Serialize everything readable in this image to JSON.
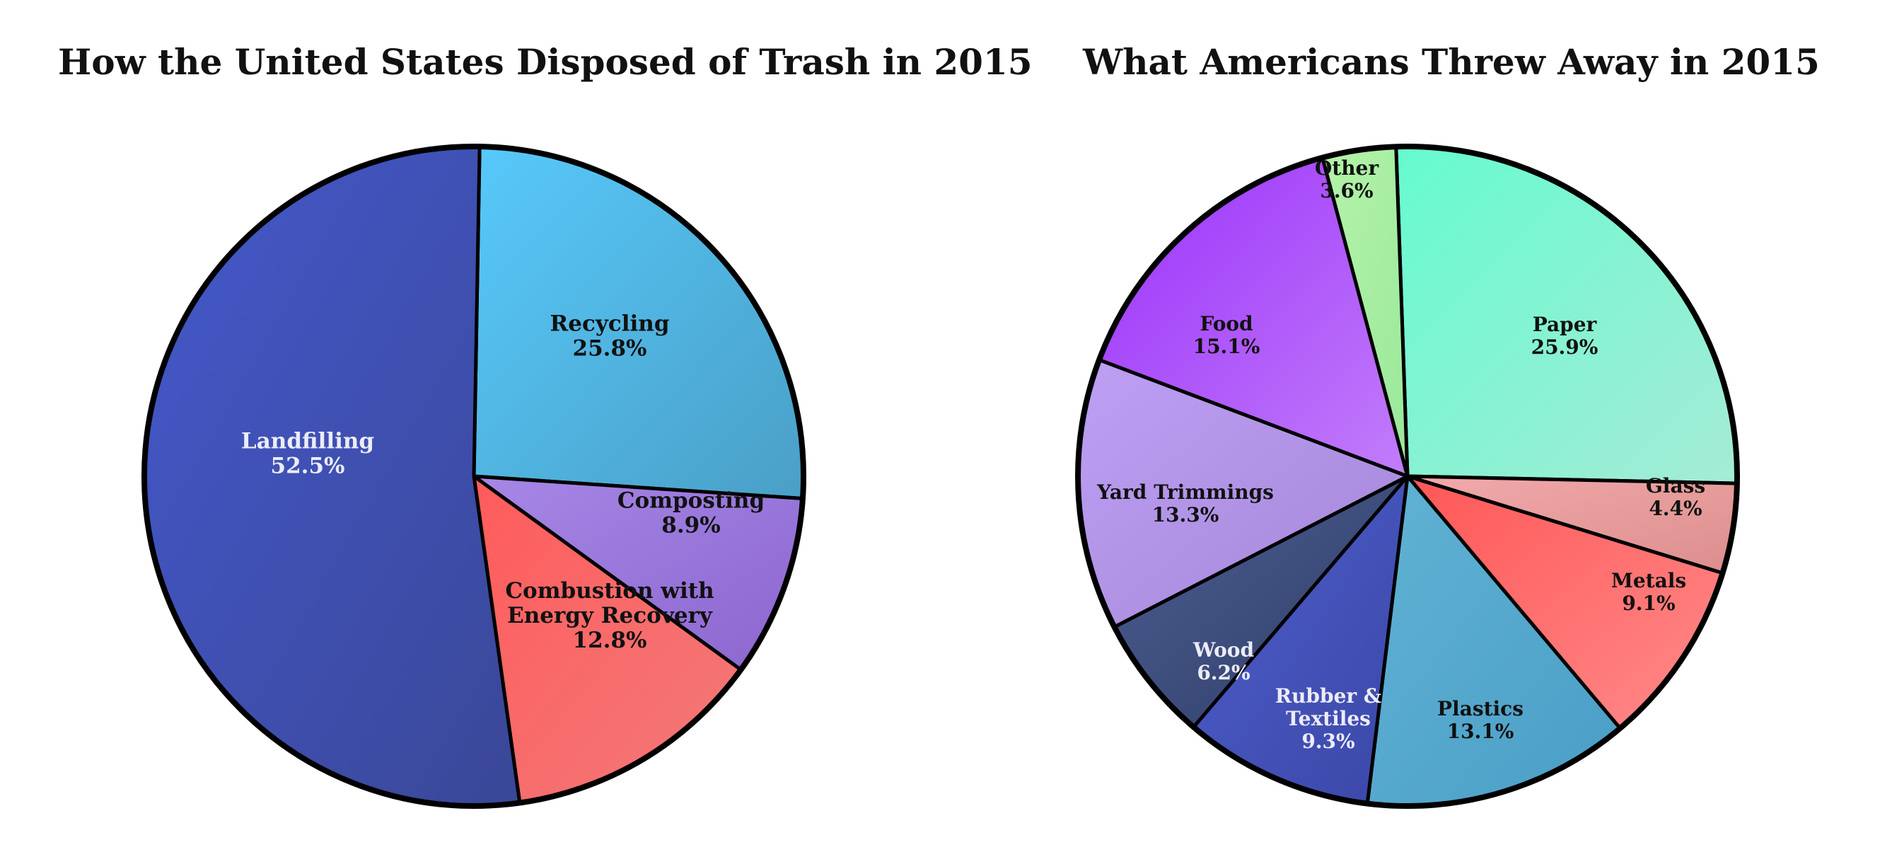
{
  "chart_data": [
    {
      "type": "pie",
      "title": "How the United States Disposed of Trash in 2015",
      "start_angle_deg": 1.0,
      "direction": "clockwise",
      "slices": [
        {
          "label": [
            "Recycling"
          ],
          "value": 25.8,
          "display": "25.8%",
          "color_light": "#57c9fb",
          "color_dark": "#4a9fc6",
          "text_color": "#111111"
        },
        {
          "label": [
            "Composting"
          ],
          "value": 8.9,
          "display": "8.9%",
          "color_light": "#a687e6",
          "color_dark": "#8c66cf",
          "text_color": "#111111"
        },
        {
          "label": [
            "Combustion with",
            "Energy Recovery"
          ],
          "value": 12.8,
          "display": "12.8%",
          "color_light": "#ff5b5b",
          "color_dark": "#f27a7a",
          "text_color": "#111111"
        },
        {
          "label": [
            "Landfilling"
          ],
          "value": 52.5,
          "display": "52.5%",
          "color_light": "#4459cc",
          "color_dark": "#3a4797",
          "text_color": "#ececf8"
        }
      ]
    },
    {
      "type": "pie",
      "title": "What Americans Threw Away in 2015",
      "start_angle_deg": -2.0,
      "direction": "clockwise",
      "slices": [
        {
          "label": [
            "Paper"
          ],
          "value": 25.9,
          "display": "25.9%",
          "color_light": "#66fbcf",
          "color_dark": "#a5ebd6",
          "text_color": "#111111"
        },
        {
          "label": [
            "Glass"
          ],
          "value": 4.4,
          "display": "4.4%",
          "color_light": "#f2aaaa",
          "color_dark": "#dc8e8e",
          "text_color": "#111111"
        },
        {
          "label": [
            "Metals"
          ],
          "value": 9.1,
          "display": "9.1%",
          "color_light": "#ff5757",
          "color_dark": "#ff8a8a",
          "text_color": "#111111"
        },
        {
          "label": [
            "Plastics"
          ],
          "value": 13.1,
          "display": "13.1%",
          "color_light": "#61b3d4",
          "color_dark": "#4a9dc6",
          "text_color": "#111111"
        },
        {
          "label": [
            "Rubber &",
            "Textiles"
          ],
          "value": 9.3,
          "display": "9.3%",
          "color_light": "#4f5fcd",
          "color_dark": "#3a47a6",
          "text_color": "#ececf8"
        },
        {
          "label": [
            "Wood"
          ],
          "value": 6.2,
          "display": "6.2%",
          "color_light": "#4d5f91",
          "color_dark": "#2e3c68",
          "text_color": "#ececf8"
        },
        {
          "label": [
            "Yard Trimmings"
          ],
          "value": 13.3,
          "display": "13.3%",
          "color_light": "#bd9ff4",
          "color_dark": "#a587d8",
          "text_color": "#111111"
        },
        {
          "label": [
            "Food"
          ],
          "value": 15.1,
          "display": "15.1%",
          "color_light": "#9b32fb",
          "color_dark": "#c27dfa",
          "text_color": "#111111"
        },
        {
          "label": [
            "Other"
          ],
          "value": 3.6,
          "display": "3.6%",
          "color_light": "#b5f3a9",
          "color_dark": "#9ae89a",
          "text_color": "#111111"
        }
      ]
    }
  ]
}
